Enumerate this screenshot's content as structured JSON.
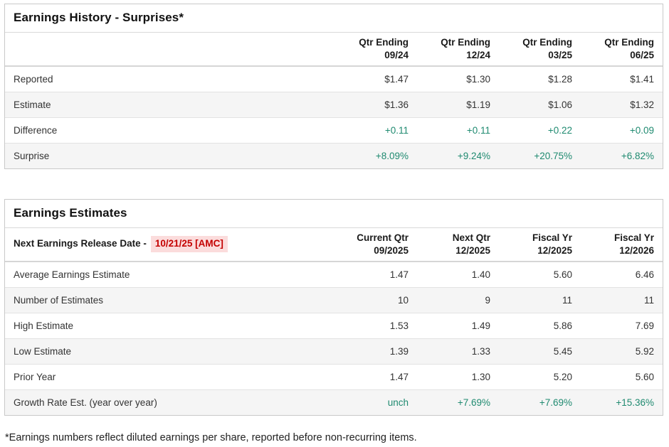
{
  "colors": {
    "positive_green": "#1f8a70",
    "release_red": "#c40000",
    "release_badge_bg": "#fbdcdc",
    "row_stripe": "#f5f5f5",
    "panel_border": "#c9c9c9"
  },
  "earnings_history": {
    "title": "Earnings History - Surprises*",
    "columns": [
      {
        "line1": "Qtr Ending",
        "line2": "09/24"
      },
      {
        "line1": "Qtr Ending",
        "line2": "12/24"
      },
      {
        "line1": "Qtr Ending",
        "line2": "03/25"
      },
      {
        "line1": "Qtr Ending",
        "line2": "06/25"
      }
    ],
    "rows": [
      {
        "label": "Reported",
        "values": [
          "$1.47",
          "$1.30",
          "$1.28",
          "$1.41"
        ]
      },
      {
        "label": "Estimate",
        "values": [
          "$1.36",
          "$1.19",
          "$1.06",
          "$1.32"
        ]
      },
      {
        "label": "Difference",
        "values": [
          "+0.11",
          "+0.11",
          "+0.22",
          "+0.09"
        ]
      },
      {
        "label": "Surprise",
        "values": [
          "+8.09%",
          "+9.24%",
          "+20.75%",
          "+6.82%"
        ]
      }
    ]
  },
  "earnings_estimates": {
    "title": "Earnings Estimates",
    "release_label": "Next Earnings Release Date -",
    "release_date": "10/21/25 [AMC]",
    "columns": [
      {
        "line1": "Current Qtr",
        "line2": "09/2025"
      },
      {
        "line1": "Next Qtr",
        "line2": "12/2025"
      },
      {
        "line1": "Fiscal Yr",
        "line2": "12/2025"
      },
      {
        "line1": "Fiscal Yr",
        "line2": "12/2026"
      }
    ],
    "rows": [
      {
        "label": "Average Earnings Estimate",
        "values": [
          "1.47",
          "1.40",
          "5.60",
          "6.46"
        ]
      },
      {
        "label": "Number of Estimates",
        "values": [
          "10",
          "9",
          "11",
          "11"
        ]
      },
      {
        "label": "High Estimate",
        "values": [
          "1.53",
          "1.49",
          "5.86",
          "7.69"
        ]
      },
      {
        "label": "Low Estimate",
        "values": [
          "1.39",
          "1.33",
          "5.45",
          "5.92"
        ]
      },
      {
        "label": "Prior Year",
        "values": [
          "1.47",
          "1.30",
          "5.20",
          "5.60"
        ]
      },
      {
        "label": "Growth Rate Est. (year over year)",
        "values": [
          "unch",
          "+7.69%",
          "+7.69%",
          "+15.36%"
        ]
      }
    ]
  },
  "footnote": "*Earnings numbers reflect diluted earnings per share, reported before non-recurring items."
}
